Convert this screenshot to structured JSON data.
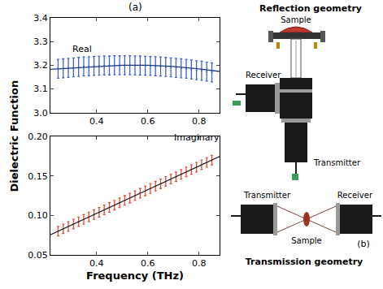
{
  "chart_data": [
    {
      "type": "scatter",
      "label": "Real",
      "grid": false,
      "xlim": [
        0.22,
        0.88
      ],
      "xticks": [
        0.4,
        0.6,
        0.8
      ],
      "ylim": [
        3.0,
        3.4
      ],
      "yticks": [
        {
          "value": 3.0,
          "label": "3.0"
        },
        3.1,
        3.2,
        3.3,
        3.4
      ],
      "series": [
        {
          "type": "scatter",
          "color": "#3f64d0",
          "x": [
            0.25,
            0.27,
            0.29,
            0.31,
            0.33,
            0.35,
            0.37,
            0.39,
            0.41,
            0.43,
            0.45,
            0.47,
            0.49,
            0.51,
            0.53,
            0.55,
            0.57,
            0.59,
            0.61,
            0.63,
            0.65,
            0.67,
            0.69,
            0.71,
            0.73,
            0.75,
            0.77,
            0.79,
            0.81,
            0.83,
            0.85
          ],
          "values": [
            3.185,
            3.187,
            3.189,
            3.191,
            3.193,
            3.195,
            3.196,
            3.197,
            3.198,
            3.199,
            3.199,
            3.2,
            3.2,
            3.2,
            3.2,
            3.199,
            3.199,
            3.198,
            3.197,
            3.196,
            3.195,
            3.193,
            3.191,
            3.189,
            3.187,
            3.185,
            3.182,
            3.179,
            3.177,
            3.173,
            3.17
          ],
          "error": [
            0.04,
            0.04,
            0.04,
            0.04,
            0.04,
            0.04,
            0.04,
            0.04,
            0.04,
            0.04,
            0.04,
            0.04,
            0.04,
            0.04,
            0.04,
            0.04,
            0.04,
            0.04,
            0.04,
            0.04,
            0.04,
            0.04,
            0.04,
            0.04,
            0.04,
            0.04,
            0.04,
            0.04,
            0.04,
            0.04,
            0.04
          ]
        },
        {
          "type": "line",
          "color": "#1c3a8a",
          "x": [
            0.22,
            0.3,
            0.4,
            0.5,
            0.6,
            0.7,
            0.8,
            0.88
          ],
          "values": [
            3.183,
            3.188,
            3.195,
            3.2,
            3.2,
            3.195,
            3.185,
            3.174
          ]
        }
      ]
    },
    {
      "type": "scatter",
      "label": "Imaginary",
      "grid": false,
      "xlim": [
        0.22,
        0.88
      ],
      "xticks": [
        0.4,
        0.6,
        0.8
      ],
      "ylim": [
        0.05,
        0.2
      ],
      "yticks": [
        0.05,
        {
          "value": 0.1,
          "label": "0.10"
        },
        0.15,
        {
          "value": 0.2,
          "label": "0.20"
        }
      ],
      "series": [
        {
          "type": "scatter",
          "color": "#e2513c",
          "x": [
            0.25,
            0.27,
            0.29,
            0.31,
            0.33,
            0.35,
            0.37,
            0.39,
            0.41,
            0.43,
            0.45,
            0.47,
            0.49,
            0.51,
            0.53,
            0.55,
            0.57,
            0.59,
            0.61,
            0.63,
            0.65,
            0.67,
            0.69,
            0.71,
            0.73,
            0.75,
            0.77,
            0.79,
            0.81,
            0.83,
            0.85
          ],
          "values": [
            0.08,
            0.083,
            0.086,
            0.089,
            0.092,
            0.095,
            0.098,
            0.101,
            0.104,
            0.107,
            0.11,
            0.113,
            0.116,
            0.119,
            0.122,
            0.125,
            0.128,
            0.131,
            0.134,
            0.137,
            0.14,
            0.143,
            0.146,
            0.149,
            0.152,
            0.155,
            0.158,
            0.161,
            0.164,
            0.167,
            0.17
          ],
          "error": [
            0.006,
            0.006,
            0.006,
            0.006,
            0.006,
            0.006,
            0.006,
            0.006,
            0.006,
            0.006,
            0.006,
            0.006,
            0.006,
            0.006,
            0.006,
            0.006,
            0.006,
            0.006,
            0.006,
            0.006,
            0.006,
            0.006,
            0.006,
            0.006,
            0.006,
            0.006,
            0.006,
            0.006,
            0.006,
            0.006,
            0.006
          ]
        },
        {
          "type": "line",
          "color": "#222222",
          "x": [
            0.22,
            0.88
          ],
          "values": [
            0.0755,
            0.1745
          ]
        }
      ]
    }
  ],
  "figure": {
    "label": "(a)",
    "x_label": "Frequency (THz)",
    "y_label": "Dielectric Function"
  },
  "diagram": {
    "label": "(b)",
    "reflection": {
      "title": "Reflection geometry",
      "sample": "Sample",
      "receiver": "Receiver",
      "transmitter": "Transmitter"
    },
    "transmission": {
      "title": "Transmission geometry",
      "sample": "Sample",
      "transmitter": "Transmitter",
      "receiver": "Receiver"
    }
  }
}
